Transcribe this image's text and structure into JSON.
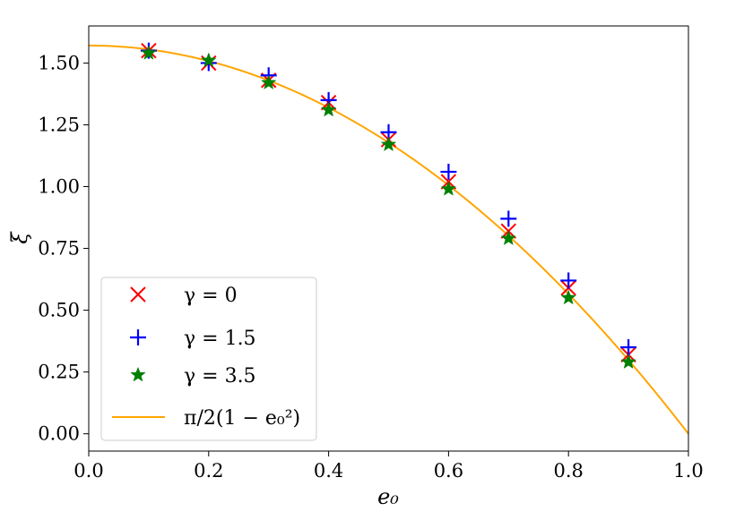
{
  "chart_data": {
    "type": "scatter",
    "xlabel": "e₀",
    "ylabel": "ξ",
    "xlim": [
      0.0,
      1.0
    ],
    "ylim": [
      -0.07,
      1.65
    ],
    "x_ticks": [
      0.0,
      0.2,
      0.4,
      0.6,
      0.8,
      1.0
    ],
    "x_tick_labels": [
      "0.0",
      "0.2",
      "0.4",
      "0.6",
      "0.8",
      "1.0"
    ],
    "y_ticks": [
      0.0,
      0.25,
      0.5,
      0.75,
      1.0,
      1.25,
      1.5
    ],
    "y_tick_labels": [
      "0.00",
      "0.25",
      "0.50",
      "0.75",
      "1.00",
      "1.25",
      "1.50"
    ],
    "grid": false,
    "legend_position": "lower-left",
    "series": [
      {
        "name": "γ = 0",
        "marker": "x",
        "color": "#ff0000",
        "x": [
          0.1,
          0.2,
          0.3,
          0.4,
          0.5,
          0.6,
          0.7,
          0.8,
          0.9
        ],
        "y": [
          1.55,
          1.5,
          1.43,
          1.34,
          1.19,
          1.02,
          0.82,
          0.59,
          0.32
        ]
      },
      {
        "name": "γ = 1.5",
        "marker": "+",
        "color": "#0000ff",
        "x": [
          0.1,
          0.2,
          0.3,
          0.4,
          0.5,
          0.6,
          0.7,
          0.8,
          0.9
        ],
        "y": [
          1.55,
          1.5,
          1.45,
          1.35,
          1.22,
          1.06,
          0.87,
          0.62,
          0.35
        ]
      },
      {
        "name": "γ = 3.5",
        "marker": "star",
        "color": "#008000",
        "x": [
          0.1,
          0.2,
          0.3,
          0.4,
          0.5,
          0.6,
          0.7,
          0.8,
          0.9
        ],
        "y": [
          1.54,
          1.51,
          1.42,
          1.31,
          1.17,
          0.99,
          0.79,
          0.55,
          0.29
        ]
      },
      {
        "name": "π/2(1 − e₀²)",
        "type": "line",
        "color": "#ffa500",
        "formula": "pi/2*(1-x^2)"
      }
    ]
  }
}
